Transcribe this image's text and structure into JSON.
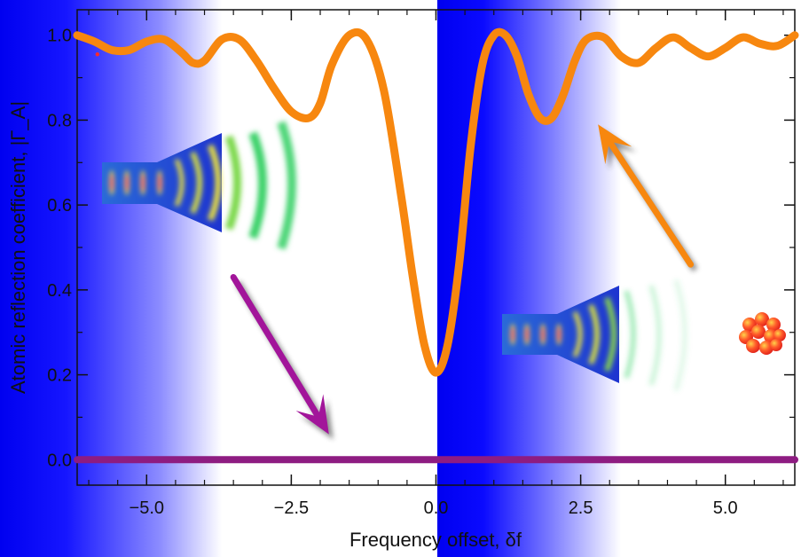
{
  "chart_data": {
    "type": "line",
    "xlabel": "Frequency offset, δf",
    "ylabel": "Atomic reflection coefficient, |Γ_A|",
    "xlim": [
      -6.2,
      6.2
    ],
    "ylim": [
      -0.06,
      1.06
    ],
    "xticks": [
      -5.0,
      -2.5,
      0.0,
      2.5,
      5.0
    ],
    "xtick_labels": [
      "−5.0",
      "−2.5",
      "0.0",
      "2.5",
      "5.0"
    ],
    "yticks": [
      0.0,
      0.2,
      0.4,
      0.6,
      0.8,
      1.0
    ],
    "ytick_labels": [
      "0.0",
      "0.2",
      "0.4",
      "0.6",
      "0.8",
      "1.0"
    ],
    "grid": false,
    "series": [
      {
        "color": "#f7870f",
        "x": [
          -6.2,
          -5.9,
          -5.6,
          -5.3,
          -5.0,
          -4.7,
          -4.4,
          -4.2,
          -4.0,
          -3.7,
          -3.4,
          -3.1,
          -2.8,
          -2.5,
          -2.2,
          -2.0,
          -1.8,
          -1.5,
          -1.2,
          -0.9,
          -0.6,
          -0.4,
          -0.2,
          0.0,
          0.2,
          0.4,
          0.6,
          0.8,
          1.0,
          1.2,
          1.4,
          1.6,
          1.8,
          2.0,
          2.2,
          2.4,
          2.6,
          2.9,
          3.2,
          3.5,
          3.8,
          4.1,
          4.4,
          4.7,
          5.0,
          5.3,
          5.6,
          5.9,
          6.2
        ],
        "y": [
          1.0,
          0.985,
          0.965,
          0.965,
          0.985,
          0.99,
          0.96,
          0.935,
          0.94,
          0.99,
          0.99,
          0.94,
          0.875,
          0.82,
          0.805,
          0.84,
          0.93,
          1.0,
          0.99,
          0.87,
          0.62,
          0.43,
          0.27,
          0.205,
          0.27,
          0.46,
          0.74,
          0.93,
          1.0,
          1.0,
          0.95,
          0.86,
          0.805,
          0.805,
          0.86,
          0.94,
          0.99,
          0.995,
          0.95,
          0.935,
          0.97,
          0.995,
          0.97,
          0.95,
          0.97,
          0.995,
          0.98,
          0.975,
          1.0
        ]
      },
      {
        "color": "#8e1c82",
        "x": [
          -6.2,
          6.2
        ],
        "y": [
          0.0,
          0.0
        ]
      }
    ],
    "annotations": {
      "small_marker": {
        "x": -5.85,
        "y": 0.955,
        "color": "#ff2a2a"
      },
      "orange_arrow": {
        "from": [
          4.4,
          0.46
        ],
        "to": [
          2.8,
          0.79
        ],
        "color": "#f7870f"
      },
      "purple_arrow": {
        "from": [
          -3.5,
          0.43
        ],
        "to": [
          -1.85,
          0.06
        ],
        "color": "#a2159a"
      }
    }
  },
  "colors": {
    "band_blue": "#0000ee",
    "curve": "#f7870f",
    "baseline": "#8e1c82",
    "horn_blue": "#2a44d8",
    "wave_green": "#3cd26a",
    "wave_yellow": "#e8e040",
    "atom_red": "#ff3b2a"
  },
  "icons": [
    "waveguide-horn-icon",
    "atom-cluster-icon"
  ]
}
